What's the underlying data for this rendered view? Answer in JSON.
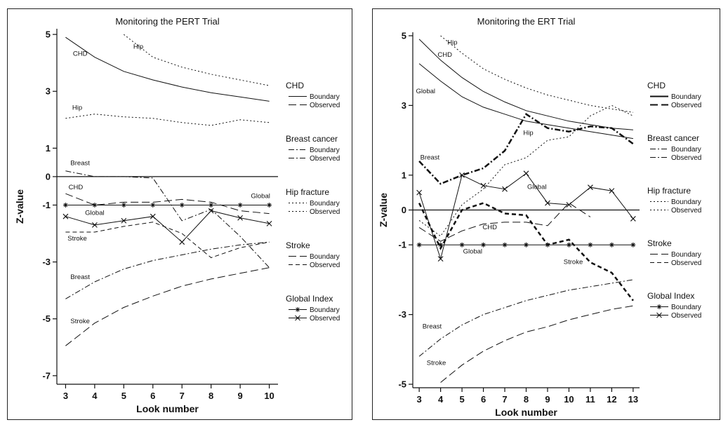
{
  "chart_data": [
    {
      "type": "line",
      "title": "Monitoring the PERT Trial",
      "xlabel": "Look number",
      "ylabel": "Z-value",
      "x": [
        3,
        4,
        5,
        6,
        7,
        8,
        9,
        10
      ],
      "xlim": [
        2.7,
        10.3
      ],
      "ylim": [
        -7.3,
        5.2
      ],
      "yticks": [
        5,
        3,
        1,
        0,
        -1,
        -3,
        -5,
        -7
      ],
      "reference_line": 0,
      "series": [
        {
          "name": "CHD Boundary",
          "style": "solid",
          "width": 1,
          "values": [
            4.9,
            4.2,
            3.7,
            3.4,
            3.15,
            2.95,
            2.8,
            2.65
          ]
        },
        {
          "name": "CHD Observed",
          "style": "longdash",
          "width": 1,
          "values": [
            -0.6,
            -1.0,
            -0.9,
            -0.9,
            -0.8,
            -0.9,
            -1.2,
            -1.3
          ]
        },
        {
          "name": "Breast cancer Boundary",
          "style": "dashdot",
          "width": 1,
          "values": [
            -4.3,
            -3.7,
            -3.25,
            -2.95,
            -2.75,
            -2.55,
            -2.4,
            -2.3
          ]
        },
        {
          "name": "Breast cancer Observed",
          "style": "dashdot",
          "width": 1,
          "values": [
            0.2,
            0.0,
            0.0,
            -0.05,
            -1.55,
            -1.15,
            -2.1,
            -3.2
          ]
        },
        {
          "name": "Hip fracture Boundary",
          "style": "dotted",
          "width": 1,
          "values": [
            null,
            null,
            5.0,
            4.2,
            3.85,
            3.6,
            3.4,
            3.2
          ]
        },
        {
          "name": "Hip fracture Observed",
          "style": "dotted",
          "width": 1,
          "values": [
            2.05,
            2.2,
            2.1,
            2.05,
            1.9,
            1.8,
            2.0,
            1.9
          ]
        },
        {
          "name": "Stroke Boundary",
          "style": "longdash",
          "width": 1,
          "values": [
            -5.95,
            -5.15,
            -4.6,
            -4.2,
            -3.85,
            -3.6,
            -3.4,
            -3.2
          ]
        },
        {
          "name": "Stroke Observed",
          "style": "dashed",
          "width": 1,
          "values": [
            -1.95,
            -1.95,
            -1.75,
            -1.6,
            -2.0,
            -2.85,
            -2.5,
            -2.3
          ]
        },
        {
          "name": "Global Index Boundary",
          "style": "solid",
          "width": 1,
          "marker": "star",
          "values": [
            -1.0,
            -1.0,
            -1.0,
            -1.0,
            -1.0,
            -1.0,
            -1.0,
            -1.0
          ]
        },
        {
          "name": "Global Index Observed",
          "style": "solid",
          "width": 1,
          "marker": "x",
          "values": [
            -1.4,
            -1.7,
            -1.55,
            -1.4,
            -2.3,
            -1.2,
            -1.45,
            -1.65
          ]
        }
      ],
      "annotations": [
        {
          "text": "CHD",
          "x": 3.5,
          "y": 4.25
        },
        {
          "text": "Hip",
          "x": 5.5,
          "y": 4.5
        },
        {
          "text": "Hip",
          "x": 3.4,
          "y": 2.35
        },
        {
          "text": "Breast",
          "x": 3.5,
          "y": 0.4
        },
        {
          "text": "CHD",
          "x": 3.35,
          "y": -0.45
        },
        {
          "text": "Global",
          "x": 4.0,
          "y": -1.35
        },
        {
          "text": "Global",
          "x": 9.7,
          "y": -0.75
        },
        {
          "text": "Stroke",
          "x": 3.4,
          "y": -2.25
        },
        {
          "text": "Breast",
          "x": 3.5,
          "y": -3.6
        },
        {
          "text": "Stroke",
          "x": 3.5,
          "y": -5.15
        }
      ],
      "legend": {
        "placement": "right",
        "groups": [
          {
            "title": "CHD",
            "items": [
              {
                "label": "Boundary",
                "style": "solid",
                "width": 1
              },
              {
                "label": "Observed",
                "style": "longdash",
                "width": 1
              }
            ]
          },
          {
            "title": "Breast cancer",
            "items": [
              {
                "label": "Boundary",
                "style": "dashdot",
                "width": 1
              },
              {
                "label": "Observed",
                "style": "dashdot",
                "width": 1
              }
            ]
          },
          {
            "title": "Hip fracture",
            "items": [
              {
                "label": "Boundary",
                "style": "dotted",
                "width": 1
              },
              {
                "label": "Observed",
                "style": "dotted",
                "width": 1
              }
            ]
          },
          {
            "title": "Stroke",
            "items": [
              {
                "label": "Boundary",
                "style": "longdash",
                "width": 1
              },
              {
                "label": "Observed",
                "style": "dashed",
                "width": 1
              }
            ]
          },
          {
            "title": "Global Index",
            "items": [
              {
                "label": "Boundary",
                "style": "solid",
                "width": 1,
                "marker": "star"
              },
              {
                "label": "Observed",
                "style": "solid",
                "width": 1,
                "marker": "x"
              }
            ]
          }
        ]
      }
    },
    {
      "type": "line",
      "title": "Monitoring the ERT Trial",
      "xlabel": "Look number",
      "ylabel": "Z-value",
      "x": [
        3,
        4,
        5,
        6,
        7,
        8,
        9,
        10,
        11,
        12,
        13
      ],
      "xlim": [
        2.7,
        13.3
      ],
      "ylim": [
        -5.1,
        5.1
      ],
      "yticks": [
        5,
        3,
        1,
        0,
        -1,
        -3,
        -5
      ],
      "reference_line": 0,
      "series": [
        {
          "name": "CHD Boundary",
          "style": "solid",
          "width": 1,
          "values": [
            4.9,
            4.3,
            3.8,
            3.4,
            3.1,
            2.85,
            2.7,
            2.55,
            2.45,
            2.35,
            2.3
          ]
        },
        {
          "name": "CHD Observed",
          "style": "longdash",
          "width": 1,
          "values": [
            -0.5,
            -0.9,
            -0.6,
            -0.4,
            -0.35,
            -0.35,
            -0.45,
            0.2,
            -0.2,
            null,
            null
          ]
        },
        {
          "name": "Breast cancer Boundary",
          "style": "dashdot",
          "width": 1,
          "values": [
            -4.2,
            -3.7,
            -3.3,
            -3.0,
            -2.8,
            -2.6,
            -2.45,
            -2.3,
            -2.2,
            -2.1,
            -2.0
          ]
        },
        {
          "name": "Breast cancer Observed",
          "style": "dashdot",
          "width": 2.5,
          "values": [
            1.4,
            0.75,
            1.0,
            1.2,
            1.7,
            2.75,
            2.35,
            2.25,
            2.4,
            2.35,
            1.9
          ]
        },
        {
          "name": "Hip fracture Boundary",
          "style": "dotted",
          "width": 1,
          "values": [
            null,
            5.0,
            4.5,
            4.05,
            3.75,
            3.5,
            3.3,
            3.15,
            3.0,
            2.9,
            2.8
          ]
        },
        {
          "name": "Hip fracture Observed",
          "style": "dotted",
          "width": 1,
          "values": [
            -0.3,
            -0.75,
            0.15,
            0.6,
            1.3,
            1.5,
            2.0,
            2.1,
            2.7,
            3.0,
            2.7
          ]
        },
        {
          "name": "Stroke Boundary",
          "style": "longdash",
          "width": 1,
          "values": [
            null,
            -4.95,
            -4.45,
            -4.05,
            -3.75,
            -3.5,
            -3.35,
            -3.15,
            -3.0,
            -2.85,
            -2.75
          ]
        },
        {
          "name": "Stroke Observed",
          "style": "dashed",
          "width": 2.5,
          "values": [
            0.2,
            -1.1,
            0.0,
            0.2,
            -0.1,
            -0.15,
            -1.0,
            -0.85,
            -1.5,
            -1.8,
            -2.6
          ]
        },
        {
          "name": "Global Index Boundary",
          "style": "solid",
          "width": 1,
          "marker": "star",
          "values": [
            -1.0,
            -1.0,
            -1.0,
            -1.0,
            -1.0,
            -1.0,
            -1.0,
            -1.0,
            -1.0,
            -1.0,
            -1.0
          ]
        },
        {
          "name": "Global Index Observed",
          "style": "solid",
          "width": 1,
          "marker": "x",
          "values": [
            0.5,
            -1.4,
            1.0,
            0.7,
            0.6,
            1.05,
            0.2,
            0.15,
            0.65,
            0.55,
            -0.25
          ]
        },
        {
          "name": "Global Boundary",
          "style": "solid",
          "width": 1,
          "values": [
            4.2,
            3.7,
            3.25,
            2.95,
            2.75,
            2.55,
            2.45,
            2.35,
            2.25,
            2.15,
            2.05
          ]
        }
      ],
      "annotations": [
        {
          "text": "Hip",
          "x": 4.55,
          "y": 4.75
        },
        {
          "text": "CHD",
          "x": 4.2,
          "y": 4.4
        },
        {
          "text": "Global",
          "x": 3.3,
          "y": 3.35
        },
        {
          "text": "Breast",
          "x": 3.5,
          "y": 1.45
        },
        {
          "text": "Hip",
          "x": 8.1,
          "y": 2.15
        },
        {
          "text": "Global",
          "x": 8.5,
          "y": 0.6
        },
        {
          "text": "CHD",
          "x": 6.3,
          "y": -0.55
        },
        {
          "text": "Global",
          "x": 5.5,
          "y": -1.25
        },
        {
          "text": "Stroke",
          "x": 10.2,
          "y": -1.55
        },
        {
          "text": "Breast",
          "x": 3.6,
          "y": -3.4
        },
        {
          "text": "Stroke",
          "x": 3.8,
          "y": -4.45
        }
      ],
      "legend": {
        "placement": "right",
        "groups": [
          {
            "title": "CHD",
            "items": [
              {
                "label": "Boundary",
                "style": "solid",
                "width": 2
              },
              {
                "label": "Observed",
                "style": "longdash",
                "width": 2
              }
            ]
          },
          {
            "title": "Breast cancer",
            "items": [
              {
                "label": "Boundary",
                "style": "dashdot",
                "width": 1
              },
              {
                "label": "Observed",
                "style": "dashdot",
                "width": 1
              }
            ]
          },
          {
            "title": "Hip fracture",
            "items": [
              {
                "label": "Boundary",
                "style": "dotted",
                "width": 1
              },
              {
                "label": "Observed",
                "style": "dotted",
                "width": 1
              }
            ]
          },
          {
            "title": "Stroke",
            "items": [
              {
                "label": "Boundary",
                "style": "longdash",
                "width": 1
              },
              {
                "label": "Observed",
                "style": "dashed",
                "width": 1
              }
            ]
          },
          {
            "title": "Global Index",
            "items": [
              {
                "label": "Boundary",
                "style": "solid",
                "width": 1,
                "marker": "star"
              },
              {
                "label": "Observed",
                "style": "solid",
                "width": 1,
                "marker": "x"
              }
            ]
          }
        ]
      }
    }
  ]
}
